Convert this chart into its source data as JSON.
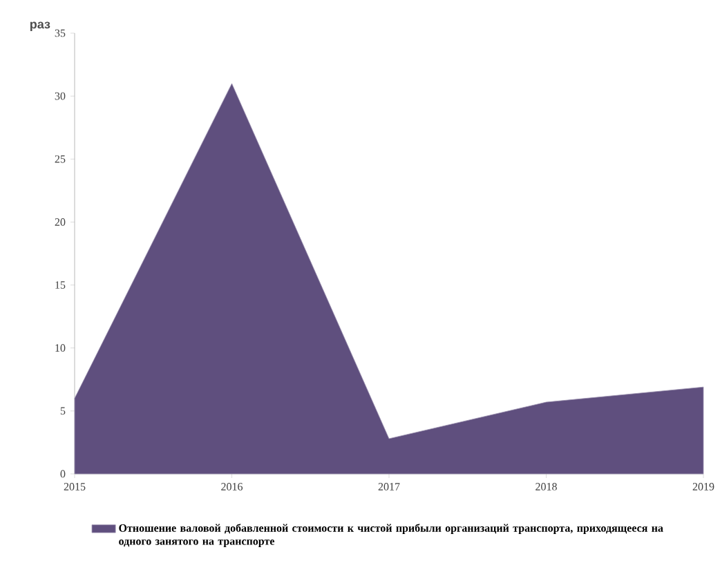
{
  "chart_data": {
    "type": "area",
    "ylabel": "раз",
    "x": [
      2015,
      2016,
      2017,
      2018,
      2019
    ],
    "series": [
      {
        "name": "Отношение валовой добавленной стоимости к чистой прибыли организаций транспорта, приходящееся на одного занятого на транспорте",
        "color": "#5f4f7e",
        "values": [
          6,
          31,
          2.8,
          5.7,
          6.9
        ]
      }
    ],
    "xlim": [
      2015,
      2019
    ],
    "xticks": [
      2015,
      2016,
      2017,
      2018,
      2019
    ],
    "ylim": [
      0,
      35
    ],
    "yticks": [
      0,
      5,
      10,
      15,
      20,
      25,
      30,
      35
    ],
    "legend": "bottom",
    "grid": false
  }
}
